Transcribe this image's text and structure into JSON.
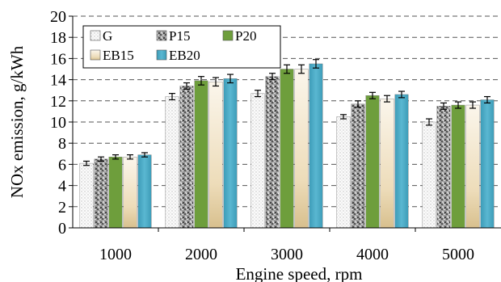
{
  "chart_data": {
    "type": "bar",
    "title": "",
    "xlabel": "Engine speed, rpm",
    "ylabel": "NOx emission, g/kWh",
    "ylim": [
      0,
      20
    ],
    "ytick_step": 2,
    "grid": "horizontal dashed",
    "legend_position": "top-left",
    "categories": [
      "1000",
      "2000",
      "3000",
      "4000",
      "5000"
    ],
    "series": [
      {
        "name": "G",
        "values": [
          6.1,
          12.4,
          12.7,
          10.5,
          10.0
        ],
        "errors": [
          0.2,
          0.3,
          0.3,
          0.2,
          0.3
        ],
        "color": "#f2f2f2",
        "pattern": "dots"
      },
      {
        "name": "P15",
        "values": [
          6.5,
          13.4,
          14.3,
          11.7,
          11.5
        ],
        "errors": [
          0.2,
          0.3,
          0.3,
          0.3,
          0.3
        ],
        "color": "#8c8c8c",
        "pattern": "speckle"
      },
      {
        "name": "P20",
        "values": [
          6.7,
          13.9,
          15.0,
          12.5,
          11.6
        ],
        "errors": [
          0.2,
          0.4,
          0.4,
          0.3,
          0.3
        ],
        "color": "#6e9e3c",
        "pattern": "solid"
      },
      {
        "name": "EB15",
        "values": [
          6.7,
          13.8,
          15.0,
          12.2,
          11.6
        ],
        "errors": [
          0.2,
          0.4,
          0.4,
          0.3,
          0.3
        ],
        "color": "#f3ead7",
        "pattern": "gradient"
      },
      {
        "name": "EB20",
        "values": [
          6.9,
          14.1,
          15.5,
          12.6,
          12.1
        ],
        "errors": [
          0.2,
          0.4,
          0.4,
          0.3,
          0.3
        ],
        "color": "#4aaac4",
        "pattern": "solid"
      }
    ]
  }
}
